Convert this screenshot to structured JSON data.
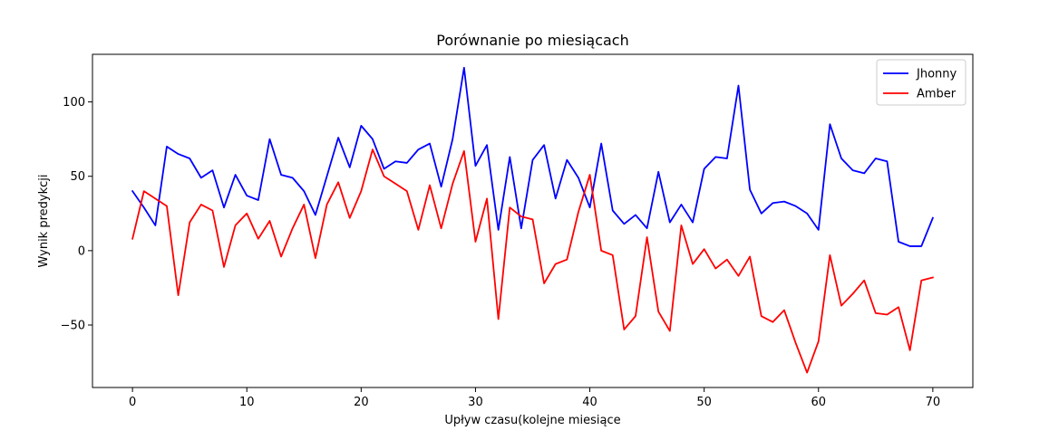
{
  "chart_data": {
    "type": "line",
    "title": "Porównanie po miesiącach",
    "xlabel": "Upływ czasu(kolejne miesiące",
    "ylabel": "Wynik predykcji",
    "xlim": [
      -3.5,
      73.5
    ],
    "ylim": [
      -92,
      132
    ],
    "xticks": [
      0,
      10,
      20,
      30,
      40,
      50,
      60,
      70
    ],
    "yticks": [
      -50,
      0,
      50,
      100
    ],
    "legend_position": "top-right",
    "grid": false,
    "x": [
      0,
      1,
      2,
      3,
      4,
      5,
      6,
      7,
      8,
      9,
      10,
      11,
      12,
      13,
      14,
      15,
      16,
      17,
      18,
      19,
      20,
      21,
      22,
      23,
      24,
      25,
      26,
      27,
      28,
      29,
      30,
      31,
      32,
      33,
      34,
      35,
      36,
      37,
      38,
      39,
      40,
      41,
      42,
      43,
      44,
      45,
      46,
      47,
      48,
      49,
      50,
      51,
      52,
      53,
      54,
      55,
      56,
      57,
      58,
      59,
      60,
      61,
      62,
      63,
      64,
      65,
      66,
      67,
      68,
      69,
      70
    ],
    "series": [
      {
        "name": "Jhonny",
        "color": "#0000ff",
        "values": [
          40,
          29,
          17,
          70,
          65,
          62,
          49,
          54,
          29,
          51,
          37,
          34,
          75,
          51,
          49,
          40,
          24,
          50,
          76,
          56,
          84,
          75,
          55,
          60,
          59,
          68,
          72,
          43,
          75,
          123,
          57,
          71,
          14,
          63,
          15,
          61,
          71,
          35,
          61,
          49,
          29,
          72,
          27,
          18,
          24,
          15,
          53,
          19,
          31,
          19,
          55,
          63,
          62,
          111,
          41,
          25,
          32,
          33,
          30,
          25,
          14,
          85,
          62,
          54,
          52,
          62,
          60,
          6,
          3,
          3,
          22
        ]
      },
      {
        "name": "Amber",
        "color": "#ff0000",
        "values": [
          8,
          40,
          35,
          30,
          -30,
          19,
          31,
          27,
          -11,
          17,
          25,
          8,
          20,
          -4,
          15,
          31,
          -5,
          31,
          46,
          22,
          40,
          68,
          50,
          45,
          40,
          14,
          44,
          15,
          45,
          67,
          6,
          35,
          -46,
          29,
          23,
          21,
          -22,
          -9,
          -6,
          26,
          51,
          0,
          -3,
          -53,
          -44,
          9,
          -41,
          -54,
          17,
          -9,
          1,
          -12,
          -6,
          -17,
          -4,
          -44,
          -48,
          -40,
          -62,
          -82,
          -61,
          -3,
          -37,
          -29,
          -20,
          -42,
          -43,
          -38,
          -67,
          -20,
          -18
        ]
      }
    ]
  }
}
